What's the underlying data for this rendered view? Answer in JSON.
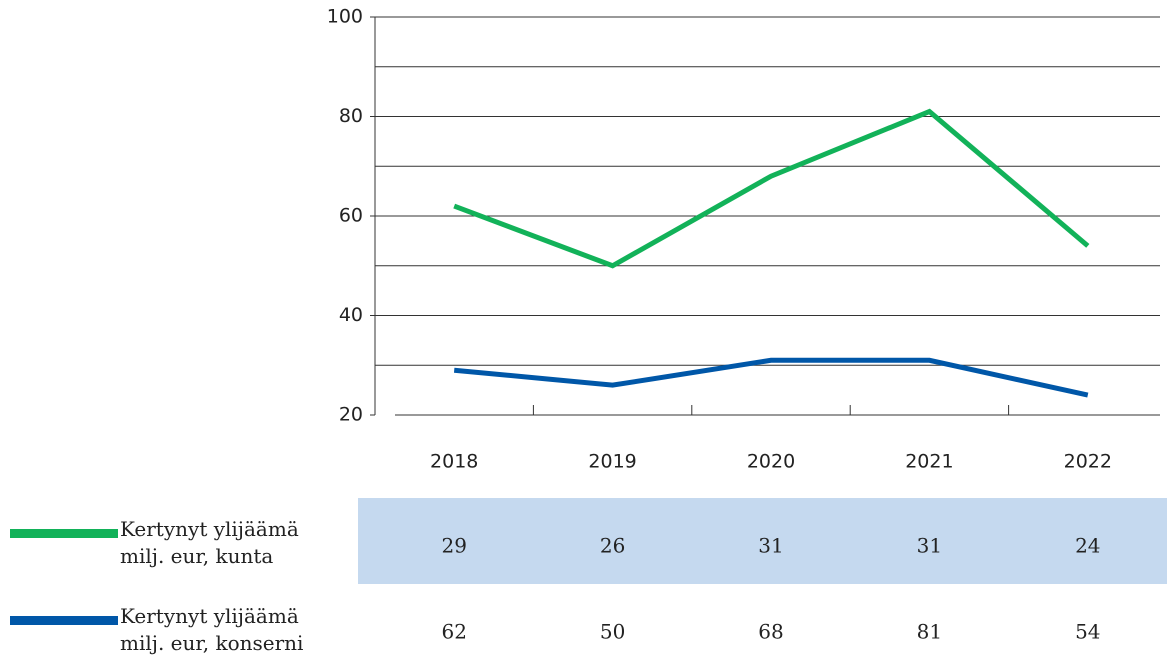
{
  "chart_data": {
    "type": "line",
    "categories": [
      "2018",
      "2019",
      "2020",
      "2021",
      "2022"
    ],
    "series": [
      {
        "name": "Kertynyt ylijäämä milj. eur, kunta",
        "color": "#12b259",
        "line_color": "#0057a8",
        "values": [
          29,
          26,
          31,
          31,
          24
        ]
      },
      {
        "name": "Kertynyt ylijäämä milj. eur, konserni",
        "color": "#0057a8",
        "line_color": "#12b259",
        "values": [
          62,
          50,
          68,
          81,
          54
        ]
      }
    ],
    "ylim": [
      20,
      100
    ],
    "yticks": [
      20,
      40,
      60,
      80,
      100
    ],
    "ygrid": [
      30,
      40,
      50,
      60,
      70,
      80,
      90,
      100
    ],
    "table_band_color": "#c5d9ef"
  }
}
